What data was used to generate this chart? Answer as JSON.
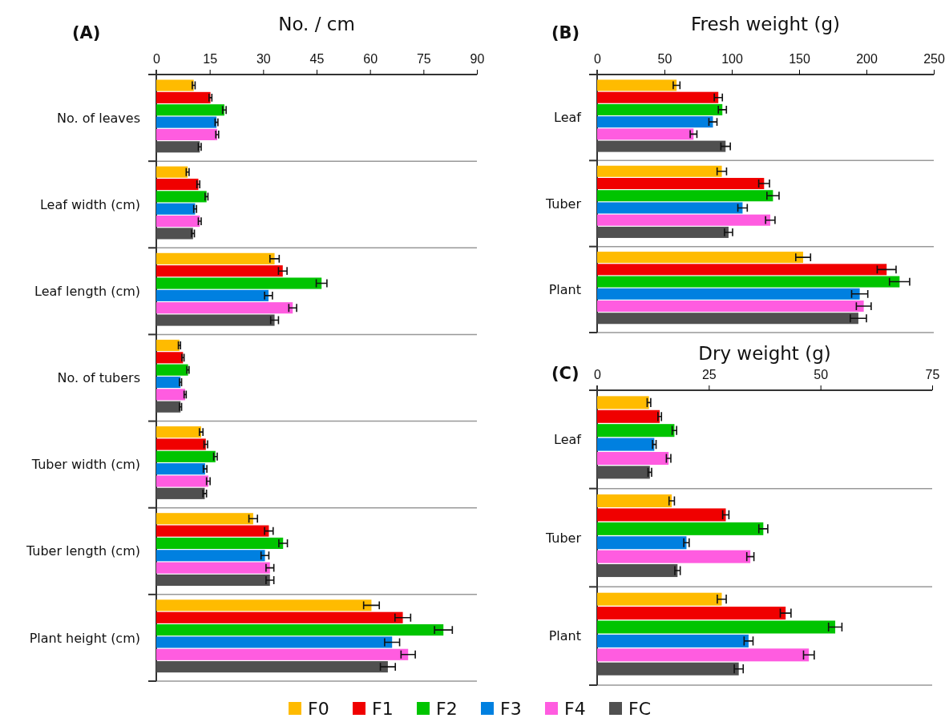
{
  "chart_data": [
    {
      "type": "bar",
      "orientation": "horizontal",
      "title": "(A)",
      "xlabel": "No. / cm",
      "legend": "bottom",
      "grid": false,
      "categories": [
        "No. of leaves",
        "Leaf width (cm)",
        "Leaf length (cm)",
        "No. of tubers",
        "Tuber width (cm)",
        "Tuber length (cm)",
        "Plant height (cm)"
      ],
      "xlim": [
        0,
        90
      ],
      "xticks": [
        0,
        15,
        30,
        45,
        60,
        75,
        90
      ],
      "series": [
        {
          "name": "F0",
          "color": "#ffbb00",
          "values": [
            10.5,
            8.8,
            33.2,
            6.5,
            12.6,
            27.2,
            60.4
          ],
          "errors": [
            0.4,
            0.4,
            1.3,
            0.3,
            0.5,
            1.2,
            2.2
          ]
        },
        {
          "name": "F1",
          "color": "#f00000",
          "values": [
            15.2,
            11.8,
            35.5,
            7.5,
            13.9,
            31.6,
            69.2
          ],
          "errors": [
            0.4,
            0.4,
            1.2,
            0.3,
            0.5,
            1.2,
            2.2
          ]
        },
        {
          "name": "F2",
          "color": "#00c400",
          "values": [
            19.1,
            14.1,
            46.4,
            8.9,
            16.6,
            35.6,
            80.6
          ],
          "errors": [
            0.5,
            0.4,
            1.5,
            0.3,
            0.5,
            1.2,
            2.5
          ]
        },
        {
          "name": "F3",
          "color": "#0080e0",
          "values": [
            16.9,
            10.9,
            31.5,
            6.8,
            13.7,
            30.5,
            66.2
          ],
          "errors": [
            0.4,
            0.4,
            1.1,
            0.3,
            0.5,
            1.1,
            2.1
          ]
        },
        {
          "name": "F4",
          "color": "#ff5ce0",
          "values": [
            17.1,
            12.2,
            38.3,
            8.1,
            14.6,
            31.9,
            70.7
          ],
          "errors": [
            0.4,
            0.4,
            1.1,
            0.3,
            0.5,
            1.1,
            2.0
          ]
        },
        {
          "name": "FC",
          "color": "#505050",
          "values": [
            12.2,
            10.3,
            33.2,
            6.8,
            13.6,
            31.9,
            65.0
          ],
          "errors": [
            0.4,
            0.4,
            1.1,
            0.3,
            0.5,
            1.1,
            2.1
          ]
        }
      ]
    },
    {
      "type": "bar",
      "orientation": "horizontal",
      "title": "(B)",
      "xlabel": "Fresh weight (g)",
      "grid": false,
      "categories": [
        "Leaf",
        "Tuber",
        "Plant"
      ],
      "xlim": [
        0,
        250
      ],
      "xticks": [
        0,
        50,
        100,
        150,
        200,
        250
      ],
      "series": [
        {
          "color": "#ffbb00",
          "values": [
            59,
            92.6,
            153
          ],
          "errors": [
            2.5,
            3.5,
            5.5
          ]
        },
        {
          "color": "#f00000",
          "values": [
            90,
            124,
            215
          ],
          "errors": [
            3,
            4,
            7
          ]
        },
        {
          "color": "#00c400",
          "values": [
            93,
            130.6,
            224.6
          ],
          "errors": [
            3,
            4.5,
            7.5
          ]
        },
        {
          "color": "#0080e0",
          "values": [
            86,
            108,
            195
          ],
          "errors": [
            3,
            3.5,
            6
          ]
        },
        {
          "color": "#ff5ce0",
          "values": [
            71.6,
            128.6,
            198
          ],
          "errors": [
            2.5,
            3.5,
            5.5
          ]
        },
        {
          "color": "#505050",
          "values": [
            95.4,
            97.6,
            194
          ],
          "errors": [
            3.5,
            3,
            6
          ]
        }
      ]
    },
    {
      "type": "bar",
      "orientation": "horizontal",
      "title": "(C)",
      "xlabel": "Dry weight (g)",
      "grid": false,
      "categories": [
        "Leaf",
        "Tuber",
        "Plant"
      ],
      "xlim": [
        0,
        75
      ],
      "xticks": [
        0,
        25,
        50,
        75
      ],
      "series": [
        {
          "color": "#ffbb00",
          "values": [
            11.6,
            16.7,
            27.9
          ],
          "errors": [
            0.4,
            0.6,
            1
          ]
        },
        {
          "color": "#f00000",
          "values": [
            14.0,
            28.8,
            42.2
          ],
          "errors": [
            0.4,
            0.7,
            1.2
          ]
        },
        {
          "color": "#00c400",
          "values": [
            17.3,
            37.2,
            53.3
          ],
          "errors": [
            0.5,
            1,
            1.5
          ]
        },
        {
          "color": "#0080e0",
          "values": [
            12.8,
            20.0,
            33.9
          ],
          "errors": [
            0.4,
            0.6,
            1
          ]
        },
        {
          "color": "#ff5ce0",
          "values": [
            16.0,
            34.3,
            47.4
          ],
          "errors": [
            0.5,
            0.8,
            1.2
          ]
        },
        {
          "color": "#505050",
          "values": [
            11.8,
            18.0,
            31.7
          ],
          "errors": [
            0.4,
            0.6,
            1
          ]
        }
      ]
    }
  ]
}
